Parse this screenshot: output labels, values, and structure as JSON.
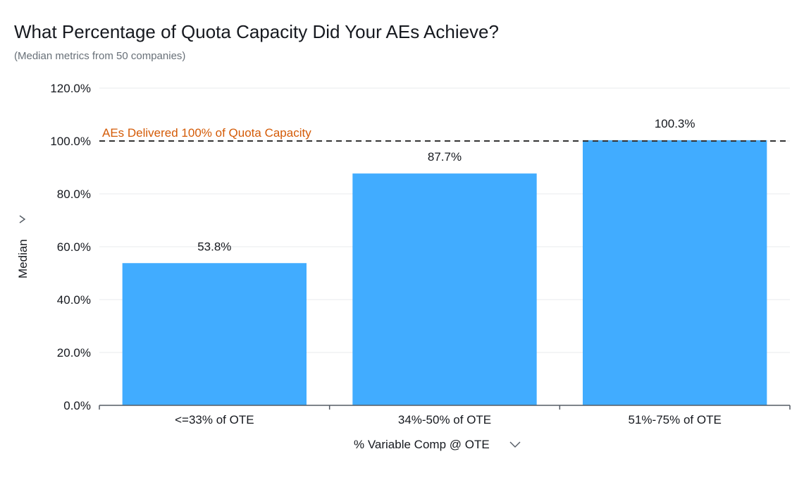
{
  "header": {
    "title": "What Percentage of Quota Capacity Did Your AEs Achieve?",
    "subtitle": "(Median metrics from 50 companies)"
  },
  "colors": {
    "bar": "#41acff",
    "reference_line": "#333333",
    "reference_label": "#d45b07",
    "grid": "#e9ebed"
  },
  "chart_data": {
    "type": "bar",
    "title": "What Percentage of Quota Capacity Did Your AEs Achieve?",
    "subtitle": "(Median metrics from 50 companies)",
    "categories": [
      "<=33% of OTE",
      "34%-50% of OTE",
      "51%-75% of OTE"
    ],
    "values": [
      53.8,
      87.7,
      100.3
    ],
    "data_labels": [
      "53.8%",
      "87.7%",
      "100.3%"
    ],
    "xlabel": "% Variable Comp @ OTE",
    "ylabel": "Median",
    "ylim": [
      0,
      120
    ],
    "yticks": [
      0,
      20,
      40,
      60,
      80,
      100,
      120
    ],
    "ytick_labels": [
      "0.0%",
      "20.0%",
      "40.0%",
      "60.0%",
      "80.0%",
      "100.0%",
      "120.0%"
    ],
    "grid": true,
    "reference_line": {
      "value": 100,
      "label": "AEs Delivered 100% of Quota Capacity",
      "style": "dashed"
    }
  }
}
